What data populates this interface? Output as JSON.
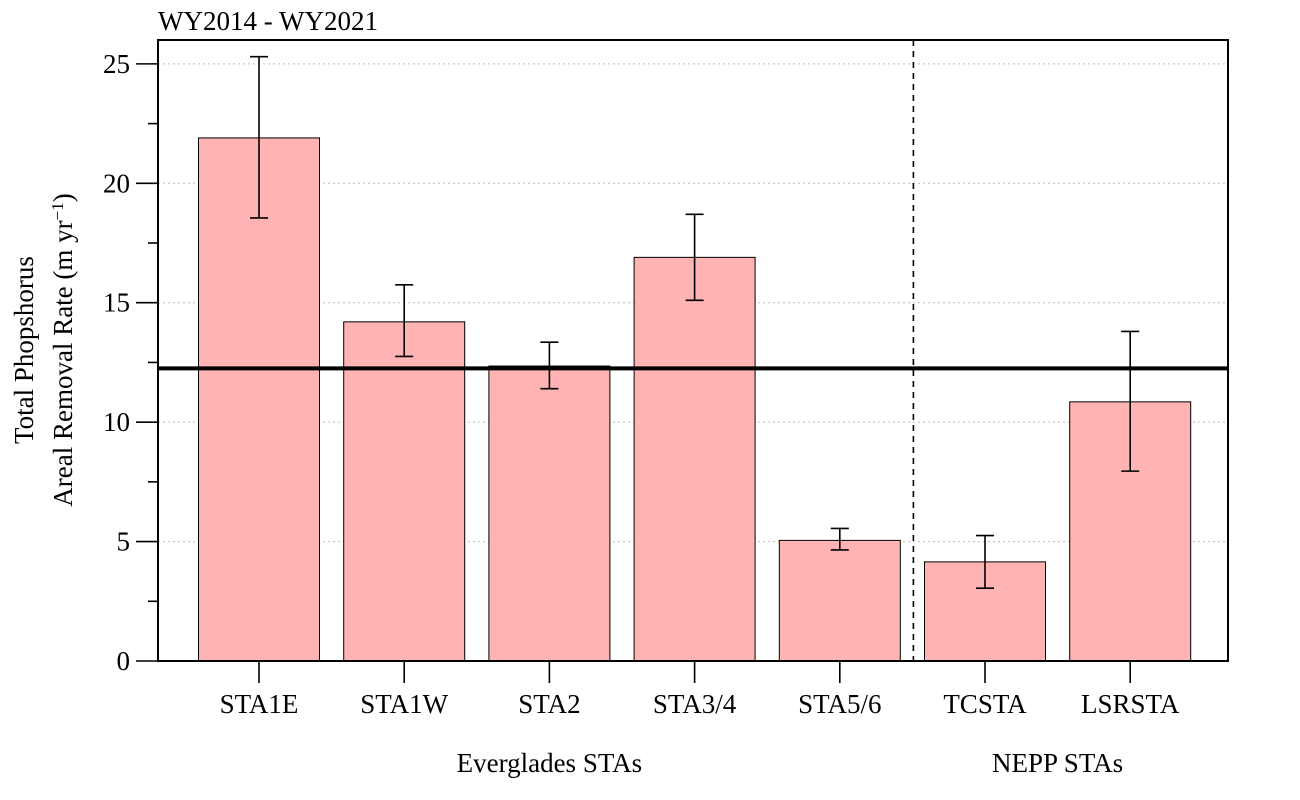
{
  "chart_data": {
    "type": "bar",
    "title": "WY2014 - WY2021",
    "ylabel_line1": "Total Phopshorus",
    "ylabel_line2": "Areal Removal Rate (m yr",
    "ylabel_sup": "−1",
    "ylabel_close": ")",
    "ylim": [
      0,
      26
    ],
    "yticks": [
      0,
      5,
      10,
      15,
      20,
      25
    ],
    "categories": [
      "STA1E",
      "STA1W",
      "STA2",
      "STA3/4",
      "STA5/6",
      "TCSTA",
      "LSRSTA"
    ],
    "values": [
      21.9,
      14.2,
      12.35,
      16.9,
      5.05,
      4.15,
      10.85
    ],
    "error_low": [
      18.55,
      12.75,
      11.4,
      15.1,
      4.65,
      3.05,
      7.95
    ],
    "error_high": [
      25.3,
      15.75,
      13.35,
      18.7,
      5.55,
      5.25,
      13.8
    ],
    "reference_line": 12.25,
    "groups": [
      {
        "label": "Everglades STAs"
      },
      {
        "label": "NEPP STAs"
      }
    ],
    "grid": "horizontal dotted",
    "bar_color": "#ffb3b3"
  }
}
